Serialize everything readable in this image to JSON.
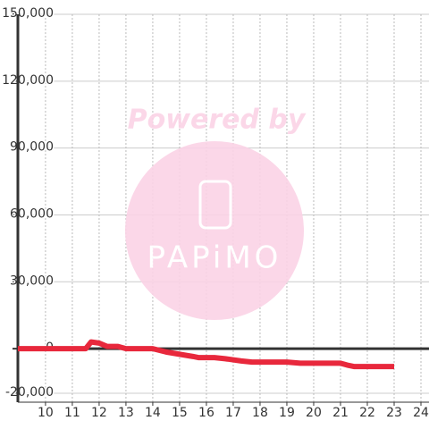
{
  "chart_data": {
    "type": "line",
    "x": [
      8.97,
      11.5,
      11.7,
      12.0,
      12.3,
      12.7,
      13.0,
      14.0,
      14.5,
      15.0,
      15.5,
      15.7,
      16.3,
      16.7,
      17.3,
      17.7,
      18.3,
      19.0,
      19.5,
      21.0,
      21.3,
      21.5,
      23.0
    ],
    "series": [
      {
        "color": "#e8283c",
        "values": [
          0,
          0,
          3000,
          2500,
          1000,
          1000,
          0,
          0,
          -1500,
          -2500,
          -3500,
          -4000,
          -4000,
          -4500,
          -5500,
          -6000,
          -6000,
          -6000,
          -6500,
          -6500,
          -7500,
          -8000,
          -8000
        ]
      }
    ],
    "xlim": [
      8.97,
      24.3
    ],
    "xticks": [
      10,
      11,
      12,
      13,
      14,
      15,
      16,
      17,
      18,
      19,
      20,
      21,
      22,
      23,
      24
    ],
    "ylim": [
      -24000,
      150000
    ],
    "yticks": [
      {
        "value": 150000,
        "label": "150,000"
      },
      {
        "value": 120000,
        "label": "120,000"
      },
      {
        "value": 90000,
        "label": "90,000"
      },
      {
        "value": 60000,
        "label": "60,000"
      },
      {
        "value": 30000,
        "label": "30,000"
      },
      0,
      {
        "value": -20000,
        "label": "-20,000"
      }
    ],
    "grid": true,
    "watermark": {
      "text": "Powered by",
      "logo": "PAPiMO"
    }
  }
}
